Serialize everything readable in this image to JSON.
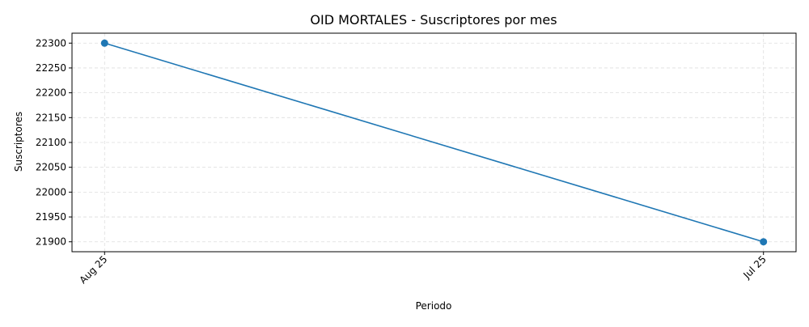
{
  "chart_data": {
    "type": "line",
    "title": "OID MORTALES - Suscriptores por mes",
    "xlabel": "Periodo",
    "ylabel": "Suscriptores",
    "categories": [
      "Aug 25",
      "Jul 25"
    ],
    "series": [
      {
        "values": [
          22300,
          21900
        ],
        "color": "#1f77b4",
        "marker": "circle"
      }
    ],
    "ylim": [
      21880,
      22320
    ],
    "yticks": [
      21900,
      21950,
      22000,
      22050,
      22100,
      22150,
      22200,
      22250,
      22300
    ],
    "grid": true,
    "grid_style": "dashed",
    "legend": false,
    "x_tick_rotation": 45
  }
}
